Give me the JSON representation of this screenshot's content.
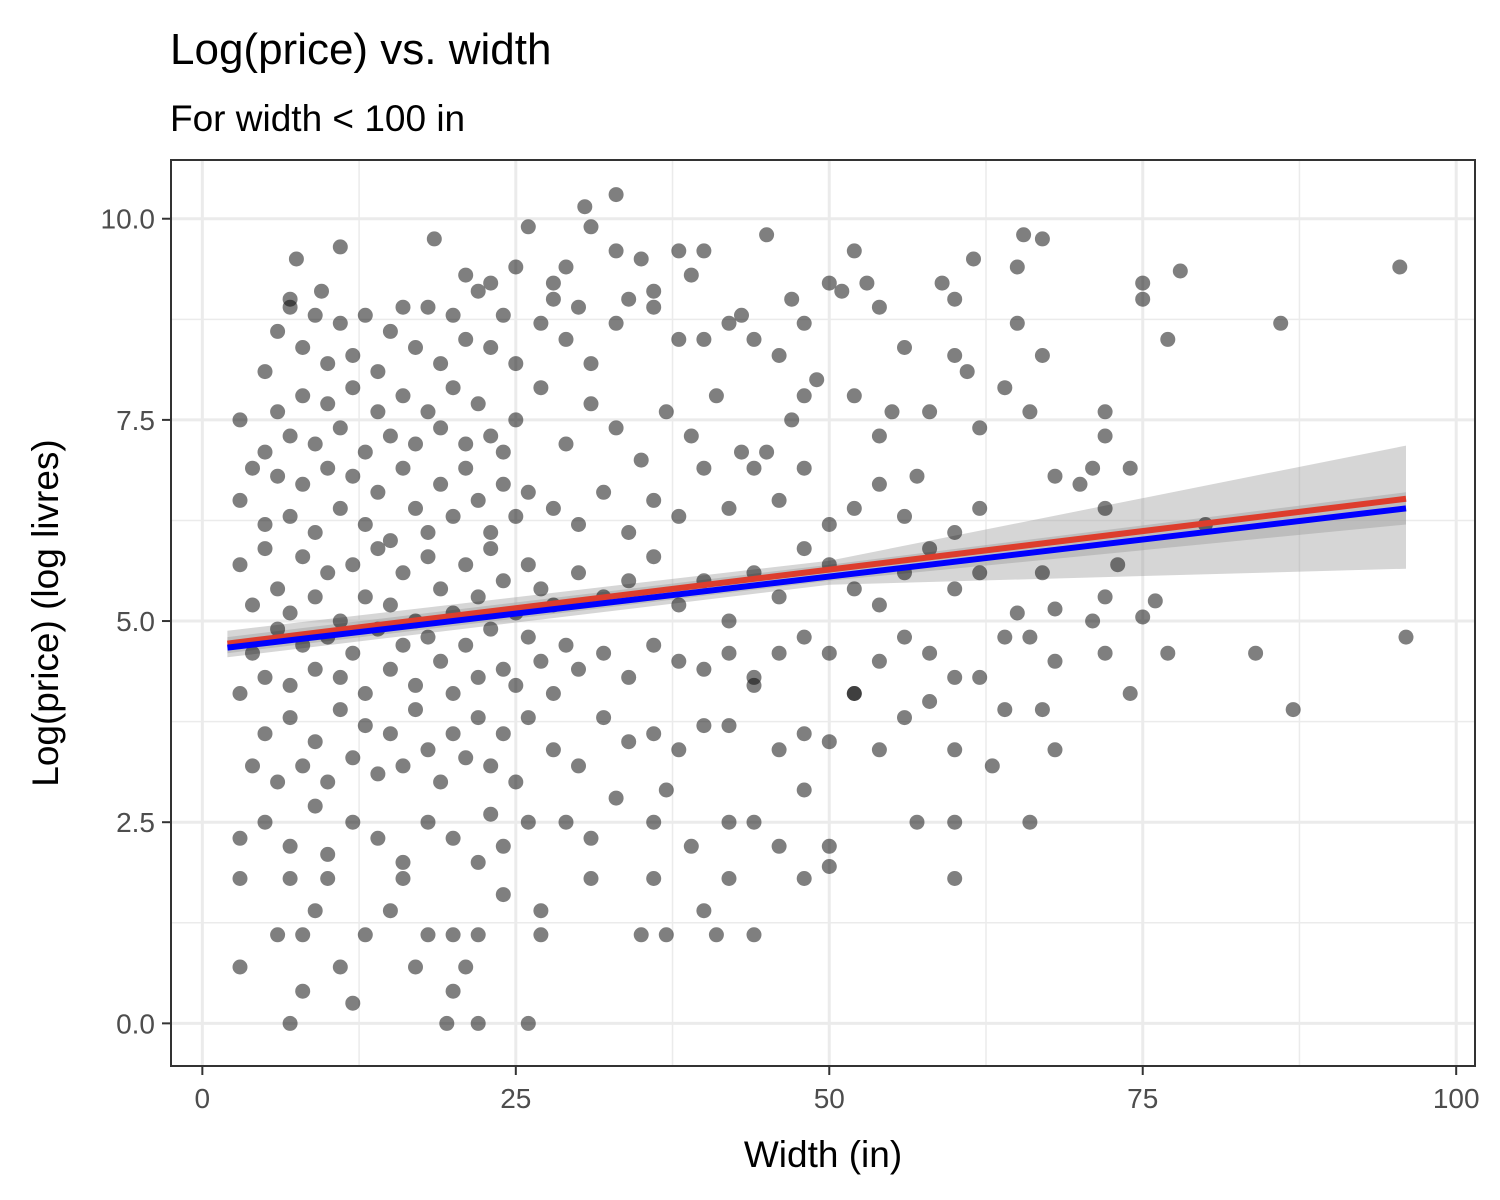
{
  "chart_data": {
    "type": "scatter",
    "title": "Log(price) vs. width",
    "subtitle": "For width < 100 in",
    "xlabel": "Width (in)",
    "ylabel": "Log(price) (log livres)",
    "xlim": [
      -2.5,
      101.5
    ],
    "ylim": [
      -0.53,
      10.73
    ],
    "x_ticks": [
      0,
      25,
      50,
      75,
      100
    ],
    "x_tick_labels": [
      "0",
      "25",
      "50",
      "75",
      "100"
    ],
    "y_ticks": [
      0.0,
      2.5,
      5.0,
      7.5,
      10.0
    ],
    "y_tick_labels": [
      "0.0",
      "2.5",
      "5.0",
      "7.5",
      "10.0"
    ],
    "grid": true,
    "point_color": "#000000",
    "point_opacity": 0.5,
    "points": [
      [
        3,
        0.7
      ],
      [
        7,
        0
      ],
      [
        8,
        0.4
      ],
      [
        9,
        1.4
      ],
      [
        11,
        0.7
      ],
      [
        12,
        0.25
      ],
      [
        17,
        0.7
      ],
      [
        19.5,
        0
      ],
      [
        20,
        0.4
      ],
      [
        21,
        0.7
      ],
      [
        22,
        0
      ],
      [
        26,
        0
      ],
      [
        3,
        1.8
      ],
      [
        6,
        1.1
      ],
      [
        7,
        1.8
      ],
      [
        8,
        1.1
      ],
      [
        10,
        1.8
      ],
      [
        13,
        1.1
      ],
      [
        15,
        1.4
      ],
      [
        16,
        1.8
      ],
      [
        18,
        1.1
      ],
      [
        20,
        1.1
      ],
      [
        22,
        1.1
      ],
      [
        24,
        1.6
      ],
      [
        27,
        1.4
      ],
      [
        27,
        1.1
      ],
      [
        35,
        1.1
      ],
      [
        37,
        1.1
      ],
      [
        40,
        1.4
      ],
      [
        41,
        1.1
      ],
      [
        44,
        1.1
      ],
      [
        42,
        1.8
      ],
      [
        48,
        1.8
      ],
      [
        50,
        1.95
      ],
      [
        60,
        1.8
      ],
      [
        36,
        1.8
      ],
      [
        31,
        1.8
      ],
      [
        3,
        2.3
      ],
      [
        5,
        2.5
      ],
      [
        7,
        2.2
      ],
      [
        9,
        2.7
      ],
      [
        10,
        2.1
      ],
      [
        12,
        2.5
      ],
      [
        14,
        2.3
      ],
      [
        16,
        2.0
      ],
      [
        18,
        2.5
      ],
      [
        20,
        2.3
      ],
      [
        22,
        2.0
      ],
      [
        23,
        2.6
      ],
      [
        24,
        2.2
      ],
      [
        26,
        2.5
      ],
      [
        29,
        2.5
      ],
      [
        31,
        2.3
      ],
      [
        33,
        2.8
      ],
      [
        36,
        2.5
      ],
      [
        37,
        2.9
      ],
      [
        39,
        2.2
      ],
      [
        42,
        2.5
      ],
      [
        44,
        2.5
      ],
      [
        46,
        2.2
      ],
      [
        48,
        2.9
      ],
      [
        50,
        2.2
      ],
      [
        57,
        2.5
      ],
      [
        60,
        2.5
      ],
      [
        63,
        3.2
      ],
      [
        66,
        2.5
      ],
      [
        4,
        3.2
      ],
      [
        5,
        3.6
      ],
      [
        6,
        3.0
      ],
      [
        7,
        3.8
      ],
      [
        8,
        3.2
      ],
      [
        9,
        3.5
      ],
      [
        10,
        3.0
      ],
      [
        11,
        3.9
      ],
      [
        12,
        3.3
      ],
      [
        13,
        3.7
      ],
      [
        14,
        3.1
      ],
      [
        15,
        3.6
      ],
      [
        16,
        3.2
      ],
      [
        17,
        3.9
      ],
      [
        18,
        3.4
      ],
      [
        19,
        3.0
      ],
      [
        20,
        3.6
      ],
      [
        21,
        3.3
      ],
      [
        22,
        3.8
      ],
      [
        23,
        3.2
      ],
      [
        24,
        3.6
      ],
      [
        25,
        3.0
      ],
      [
        26,
        3.8
      ],
      [
        28,
        3.4
      ],
      [
        30,
        3.2
      ],
      [
        32,
        3.8
      ],
      [
        34,
        3.5
      ],
      [
        36,
        3.6
      ],
      [
        38,
        3.4
      ],
      [
        40,
        3.7
      ],
      [
        42,
        3.7
      ],
      [
        44,
        4.2
      ],
      [
        46,
        3.4
      ],
      [
        48,
        3.6
      ],
      [
        50,
        3.5
      ],
      [
        52,
        4.1
      ],
      [
        54,
        3.4
      ],
      [
        56,
        3.8
      ],
      [
        58,
        4.0
      ],
      [
        60,
        3.4
      ],
      [
        64,
        3.9
      ],
      [
        67,
        3.9
      ],
      [
        68,
        3.4
      ],
      [
        3,
        4.1
      ],
      [
        4,
        4.6
      ],
      [
        5,
        4.3
      ],
      [
        6,
        4.9
      ],
      [
        7,
        4.2
      ],
      [
        8,
        4.7
      ],
      [
        9,
        4.4
      ],
      [
        10,
        4.8
      ],
      [
        11,
        4.3
      ],
      [
        12,
        4.6
      ],
      [
        13,
        4.1
      ],
      [
        14,
        4.9
      ],
      [
        15,
        4.4
      ],
      [
        16,
        4.7
      ],
      [
        17,
        4.2
      ],
      [
        18,
        4.8
      ],
      [
        19,
        4.5
      ],
      [
        20,
        4.1
      ],
      [
        21,
        4.7
      ],
      [
        22,
        4.3
      ],
      [
        23,
        4.9
      ],
      [
        24,
        4.4
      ],
      [
        25,
        4.2
      ],
      [
        26,
        4.8
      ],
      [
        27,
        4.5
      ],
      [
        28,
        4.1
      ],
      [
        29,
        4.7
      ],
      [
        30,
        4.4
      ],
      [
        32,
        4.6
      ],
      [
        34,
        4.3
      ],
      [
        36,
        4.7
      ],
      [
        38,
        4.5
      ],
      [
        40,
        4.4
      ],
      [
        42,
        4.6
      ],
      [
        44,
        4.3
      ],
      [
        46,
        4.6
      ],
      [
        48,
        4.8
      ],
      [
        50,
        4.6
      ],
      [
        52,
        4.1
      ],
      [
        54,
        4.5
      ],
      [
        56,
        4.8
      ],
      [
        58,
        4.6
      ],
      [
        60,
        4.3
      ],
      [
        62,
        4.3
      ],
      [
        64,
        4.8
      ],
      [
        66,
        4.8
      ],
      [
        68,
        4.5
      ],
      [
        72,
        4.6
      ],
      [
        74,
        4.1
      ],
      [
        75,
        5.05
      ],
      [
        77,
        4.6
      ],
      [
        84,
        4.6
      ],
      [
        87,
        3.9
      ],
      [
        96,
        4.8
      ],
      [
        3,
        5.7
      ],
      [
        4,
        5.2
      ],
      [
        5,
        5.9
      ],
      [
        6,
        5.4
      ],
      [
        7,
        5.1
      ],
      [
        8,
        5.8
      ],
      [
        9,
        5.3
      ],
      [
        10,
        5.6
      ],
      [
        11,
        5.0
      ],
      [
        12,
        5.7
      ],
      [
        13,
        5.3
      ],
      [
        14,
        5.9
      ],
      [
        15,
        5.2
      ],
      [
        16,
        5.6
      ],
      [
        17,
        5.0
      ],
      [
        18,
        5.8
      ],
      [
        19,
        5.4
      ],
      [
        20,
        5.1
      ],
      [
        21,
        5.7
      ],
      [
        22,
        5.3
      ],
      [
        23,
        5.9
      ],
      [
        24,
        5.5
      ],
      [
        25,
        5.1
      ],
      [
        26,
        5.7
      ],
      [
        27,
        5.4
      ],
      [
        28,
        5.2
      ],
      [
        30,
        5.6
      ],
      [
        32,
        5.3
      ],
      [
        34,
        5.5
      ],
      [
        36,
        5.8
      ],
      [
        38,
        5.2
      ],
      [
        40,
        5.5
      ],
      [
        42,
        5.0
      ],
      [
        44,
        5.6
      ],
      [
        46,
        5.3
      ],
      [
        48,
        5.9
      ],
      [
        50,
        5.7
      ],
      [
        52,
        5.4
      ],
      [
        54,
        5.2
      ],
      [
        56,
        5.6
      ],
      [
        58,
        5.9
      ],
      [
        60,
        5.4
      ],
      [
        62,
        5.6
      ],
      [
        65,
        5.1
      ],
      [
        67,
        5.6
      ],
      [
        68,
        5.15
      ],
      [
        71,
        5.0
      ],
      [
        72,
        5.3
      ],
      [
        73,
        5.7
      ],
      [
        76,
        5.25
      ],
      [
        3,
        6.5
      ],
      [
        4,
        6.9
      ],
      [
        5,
        6.2
      ],
      [
        6,
        6.8
      ],
      [
        7,
        6.3
      ],
      [
        8,
        6.7
      ],
      [
        9,
        6.1
      ],
      [
        10,
        6.9
      ],
      [
        11,
        6.4
      ],
      [
        12,
        6.8
      ],
      [
        13,
        6.2
      ],
      [
        14,
        6.6
      ],
      [
        15,
        6.0
      ],
      [
        16,
        6.9
      ],
      [
        17,
        6.4
      ],
      [
        18,
        6.1
      ],
      [
        19,
        6.7
      ],
      [
        20,
        6.3
      ],
      [
        21,
        6.9
      ],
      [
        22,
        6.5
      ],
      [
        23,
        6.1
      ],
      [
        24,
        6.7
      ],
      [
        25,
        6.3
      ],
      [
        26,
        6.6
      ],
      [
        28,
        6.4
      ],
      [
        30,
        6.2
      ],
      [
        32,
        6.6
      ],
      [
        34,
        6.1
      ],
      [
        36,
        6.5
      ],
      [
        38,
        6.3
      ],
      [
        40,
        6.9
      ],
      [
        42,
        6.4
      ],
      [
        44,
        6.9
      ],
      [
        46,
        6.5
      ],
      [
        48,
        6.9
      ],
      [
        50,
        6.2
      ],
      [
        52,
        6.4
      ],
      [
        54,
        6.7
      ],
      [
        56,
        6.3
      ],
      [
        57,
        6.8
      ],
      [
        60,
        6.1
      ],
      [
        62,
        6.4
      ],
      [
        68,
        6.8
      ],
      [
        70,
        6.7
      ],
      [
        71,
        6.9
      ],
      [
        72,
        6.4
      ],
      [
        74,
        6.9
      ],
      [
        80,
        6.2
      ],
      [
        3,
        7.5
      ],
      [
        5,
        7.1
      ],
      [
        6,
        7.6
      ],
      [
        7,
        7.3
      ],
      [
        8,
        7.8
      ],
      [
        9,
        7.2
      ],
      [
        10,
        7.7
      ],
      [
        11,
        7.4
      ],
      [
        12,
        7.9
      ],
      [
        13,
        7.1
      ],
      [
        14,
        7.6
      ],
      [
        15,
        7.3
      ],
      [
        16,
        7.8
      ],
      [
        17,
        7.2
      ],
      [
        18,
        7.6
      ],
      [
        19,
        7.4
      ],
      [
        20,
        7.9
      ],
      [
        21,
        7.2
      ],
      [
        22,
        7.7
      ],
      [
        23,
        7.3
      ],
      [
        24,
        7.1
      ],
      [
        25,
        7.5
      ],
      [
        27,
        7.9
      ],
      [
        29,
        7.2
      ],
      [
        31,
        7.7
      ],
      [
        33,
        7.4
      ],
      [
        35,
        7.0
      ],
      [
        37,
        7.6
      ],
      [
        39,
        7.3
      ],
      [
        41,
        7.8
      ],
      [
        43,
        7.1
      ],
      [
        45,
        7.1
      ],
      [
        47,
        7.5
      ],
      [
        48,
        7.8
      ],
      [
        52,
        7.8
      ],
      [
        54,
        7.3
      ],
      [
        55,
        7.6
      ],
      [
        58,
        7.6
      ],
      [
        62,
        7.4
      ],
      [
        64,
        7.9
      ],
      [
        66,
        7.6
      ],
      [
        72,
        7.3
      ],
      [
        72,
        7.6
      ],
      [
        5,
        8.1
      ],
      [
        6,
        8.6
      ],
      [
        7,
        8.9
      ],
      [
        8,
        8.4
      ],
      [
        9,
        8.8
      ],
      [
        10,
        8.2
      ],
      [
        11,
        8.7
      ],
      [
        12,
        8.3
      ],
      [
        13,
        8.8
      ],
      [
        14,
        8.1
      ],
      [
        15,
        8.6
      ],
      [
        16,
        8.9
      ],
      [
        17,
        8.4
      ],
      [
        18,
        8.9
      ],
      [
        19,
        8.2
      ],
      [
        20,
        8.8
      ],
      [
        21,
        8.5
      ],
      [
        22,
        9.1
      ],
      [
        23,
        8.4
      ],
      [
        24,
        8.8
      ],
      [
        25,
        8.2
      ],
      [
        27,
        8.7
      ],
      [
        28,
        9.0
      ],
      [
        29,
        8.5
      ],
      [
        30,
        8.9
      ],
      [
        31,
        8.2
      ],
      [
        33,
        8.7
      ],
      [
        34,
        9.0
      ],
      [
        36,
        8.9
      ],
      [
        38,
        8.5
      ],
      [
        40,
        8.5
      ],
      [
        42,
        8.7
      ],
      [
        44,
        8.5
      ],
      [
        46,
        8.3
      ],
      [
        48,
        8.7
      ],
      [
        49,
        8.0
      ],
      [
        54,
        8.9
      ],
      [
        56,
        8.4
      ],
      [
        60,
        8.3
      ],
      [
        61,
        8.1
      ],
      [
        65,
        8.7
      ],
      [
        67,
        8.3
      ],
      [
        77,
        8.5
      ],
      [
        86,
        8.7
      ],
      [
        7,
        9.0
      ],
      [
        7.5,
        9.5
      ],
      [
        9.5,
        9.1
      ],
      [
        11,
        9.65
      ],
      [
        18.5,
        9.75
      ],
      [
        21,
        9.3
      ],
      [
        23,
        9.2
      ],
      [
        25,
        9.4
      ],
      [
        26,
        9.9
      ],
      [
        28,
        9.2
      ],
      [
        29,
        9.4
      ],
      [
        30.5,
        10.15
      ],
      [
        31,
        9.9
      ],
      [
        33,
        10.3
      ],
      [
        33,
        9.6
      ],
      [
        35,
        9.5
      ],
      [
        36,
        9.1
      ],
      [
        38,
        9.6
      ],
      [
        39,
        9.3
      ],
      [
        40,
        9.6
      ],
      [
        43,
        8.8
      ],
      [
        45,
        9.8
      ],
      [
        47,
        9.0
      ],
      [
        50,
        9.2
      ],
      [
        51,
        9.1
      ],
      [
        52,
        9.6
      ],
      [
        53,
        9.2
      ],
      [
        59,
        9.2
      ],
      [
        60,
        9.0
      ],
      [
        61.5,
        9.5
      ],
      [
        65,
        9.4
      ],
      [
        65.5,
        9.8
      ],
      [
        67,
        9.75
      ],
      [
        75,
        9.2
      ],
      [
        75,
        9.0
      ],
      [
        78,
        9.35
      ],
      [
        95.5,
        9.4
      ]
    ],
    "series": [
      {
        "type": "linear_fit",
        "color": "#dd3d2d",
        "x": [
          2,
          96
        ],
        "y": [
          4.72,
          6.52
        ],
        "band": {
          "lower": [
            [
              2,
              4.55
            ],
            [
              50,
              5.45
            ],
            [
              96,
              5.65
            ]
          ],
          "upper": [
            [
              2,
              4.88
            ],
            [
              50,
              5.75
            ],
            [
              96,
              7.18
            ]
          ]
        }
      },
      {
        "type": "linear_fit",
        "color": "#0000ff",
        "x": [
          2,
          96
        ],
        "y": [
          4.67,
          6.4
        ],
        "band": {
          "lower": [
            [
              2,
              4.6
            ],
            [
              50,
              5.5
            ],
            [
              96,
              6.2
            ]
          ],
          "upper": [
            [
              2,
              4.8
            ],
            [
              50,
              5.7
            ],
            [
              96,
              6.6
            ]
          ]
        }
      }
    ]
  }
}
